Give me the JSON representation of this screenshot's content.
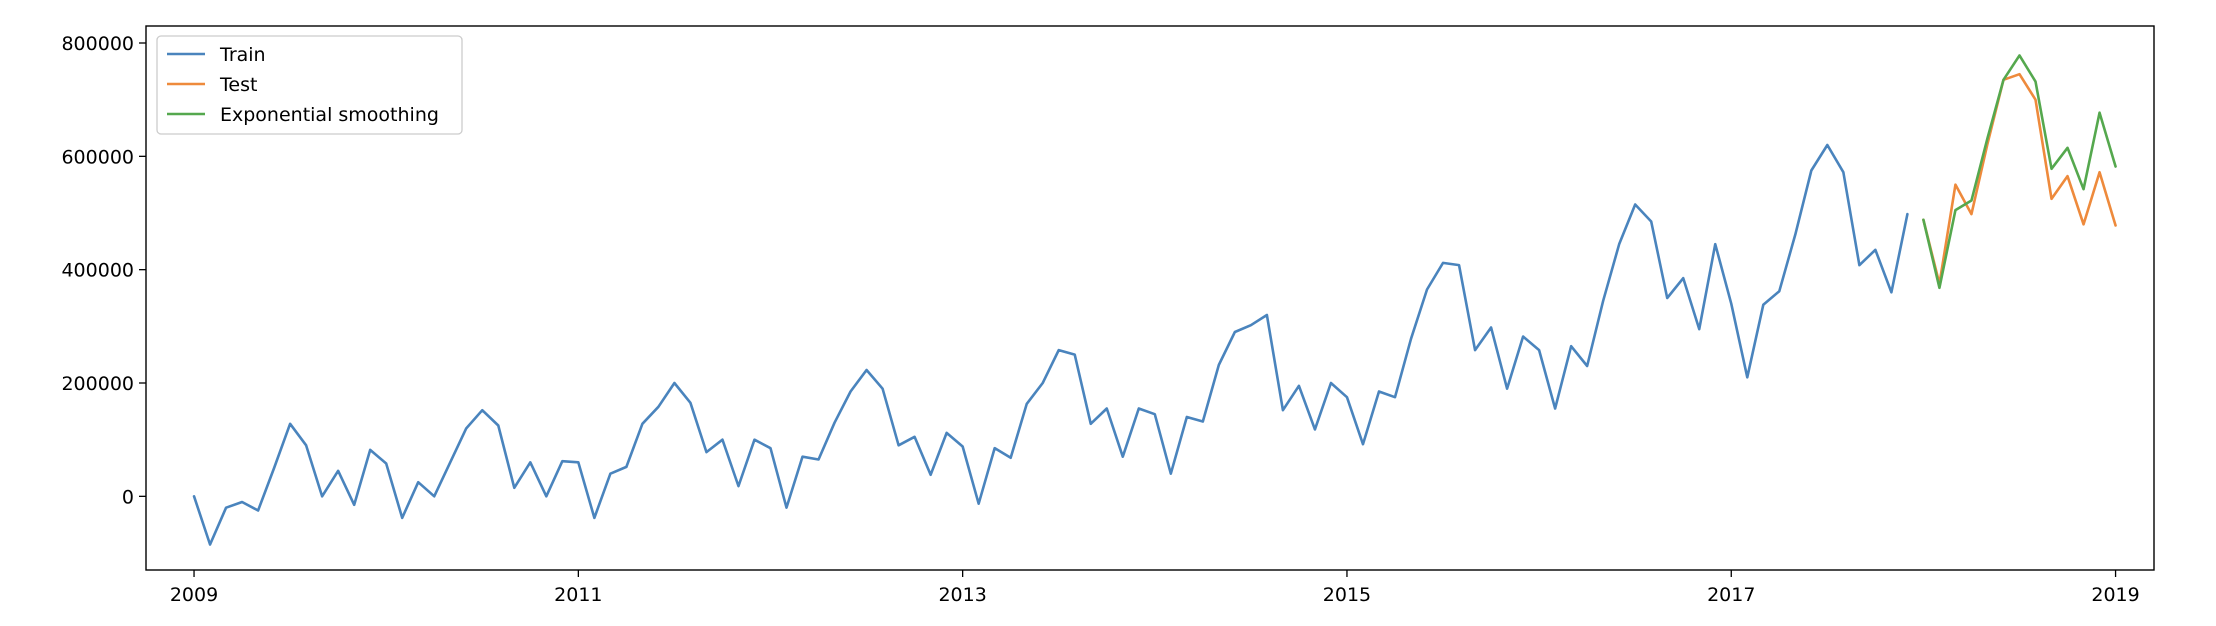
{
  "chart_data": {
    "type": "line",
    "title": "",
    "xlabel": "",
    "ylabel": "",
    "xlim": [
      2008.75,
      2019.2
    ],
    "ylim": [
      -130000,
      830000
    ],
    "grid": false,
    "legend_position": "top-left",
    "x_ticks": [
      {
        "value": 2009,
        "label": "2009"
      },
      {
        "value": 2011,
        "label": "2011"
      },
      {
        "value": 2013,
        "label": "2013"
      },
      {
        "value": 2015,
        "label": "2015"
      },
      {
        "value": 2017,
        "label": "2017"
      },
      {
        "value": 2019,
        "label": "2019"
      }
    ],
    "y_ticks": [
      {
        "value": 0,
        "label": "0"
      },
      {
        "value": 200000,
        "label": "200000"
      },
      {
        "value": 400000,
        "label": "400000"
      },
      {
        "value": 600000,
        "label": "600000"
      },
      {
        "value": 800000,
        "label": "800000"
      }
    ],
    "series": [
      {
        "name": "Train",
        "color": "#4a84bd",
        "start_year": 2009,
        "step_months": 1,
        "values": [
          0,
          -85000,
          -20000,
          -10000,
          -25000,
          50000,
          128000,
          90000,
          0,
          45000,
          -15000,
          82000,
          58000,
          -38000,
          25000,
          0,
          60000,
          120000,
          152000,
          125000,
          15000,
          60000,
          0,
          62000,
          60000,
          -38000,
          40000,
          52000,
          128000,
          158000,
          200000,
          165000,
          78000,
          100000,
          18000,
          100000,
          85000,
          -20000,
          70000,
          65000,
          130000,
          185000,
          223000,
          190000,
          90000,
          105000,
          38000,
          112000,
          88000,
          -13000,
          85000,
          68000,
          163000,
          200000,
          258000,
          250000,
          128000,
          155000,
          70000,
          155000,
          145000,
          40000,
          140000,
          132000,
          232000,
          290000,
          302000,
          320000,
          152000,
          195000,
          118000,
          200000,
          175000,
          92000,
          185000,
          175000,
          278000,
          365000,
          412000,
          408000,
          258000,
          298000,
          190000,
          282000,
          258000,
          155000,
          265000,
          230000,
          345000,
          445000,
          515000,
          485000,
          350000,
          385000,
          295000,
          445000,
          340000,
          210000,
          338000,
          362000,
          462000,
          575000,
          620000,
          572000,
          408000,
          435000,
          360000,
          498000
        ]
      },
      {
        "name": "Test",
        "color": "#ee8a3c",
        "start_year": 2018,
        "step_months": 1,
        "values": [
          488000,
          375000,
          550000,
          498000,
          622000,
          735000,
          745000,
          700000,
          525000,
          565000,
          480000,
          572000,
          478000
        ]
      },
      {
        "name": "Exponential smoothing",
        "color": "#55a84e",
        "start_year": 2018,
        "step_months": 1,
        "values": [
          488000,
          368000,
          505000,
          522000,
          632000,
          735000,
          778000,
          732000,
          578000,
          615000,
          542000,
          677000,
          582000
        ]
      }
    ]
  }
}
